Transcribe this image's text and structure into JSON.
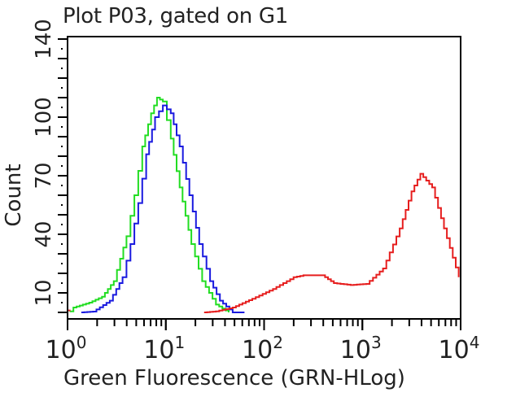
{
  "chart_data": {
    "type": "line",
    "title": "Plot P03, gated on G1",
    "xlabel": "Green Fluorescence (GRN-HLog)",
    "ylabel": "Count",
    "xscale": "log",
    "xlim": [
      1,
      10000
    ],
    "ylim": [
      0,
      141
    ],
    "x_ticks": [
      1,
      10,
      100,
      1000,
      10000
    ],
    "x_tick_labels": [
      {
        "base": "10",
        "exp": "0"
      },
      {
        "base": "10",
        "exp": "1"
      },
      {
        "base": "10",
        "exp": "2"
      },
      {
        "base": "10",
        "exp": "3"
      },
      {
        "base": "10",
        "exp": "4"
      }
    ],
    "y_ticks": [
      10,
      40,
      70,
      100,
      140
    ],
    "grid": false,
    "legend": null,
    "series": [
      {
        "name": "green",
        "color": "#22dd22",
        "points_log10x_count": [
          [
            0.02,
            0.5
          ],
          [
            0.06,
            2.5
          ],
          [
            0.22,
            5
          ],
          [
            0.35,
            8
          ],
          [
            0.47,
            16
          ],
          [
            0.6,
            39
          ],
          [
            0.68,
            60
          ],
          [
            0.76,
            85
          ],
          [
            0.85,
            102
          ],
          [
            0.91,
            110
          ],
          [
            0.97,
            108
          ],
          [
            1.05,
            89
          ],
          [
            1.14,
            64
          ],
          [
            1.26,
            35
          ],
          [
            1.37,
            16
          ],
          [
            1.51,
            4
          ],
          [
            1.64,
            0
          ]
        ]
      },
      {
        "name": "blue",
        "color": "#1a1adf",
        "points_log10x_count": [
          [
            0.14,
            0
          ],
          [
            0.26,
            0.4
          ],
          [
            0.43,
            6
          ],
          [
            0.56,
            18
          ],
          [
            0.64,
            35
          ],
          [
            0.72,
            56
          ],
          [
            0.8,
            81
          ],
          [
            0.89,
            100
          ],
          [
            0.97,
            106
          ],
          [
            1.05,
            102
          ],
          [
            1.14,
            85
          ],
          [
            1.24,
            60
          ],
          [
            1.34,
            35
          ],
          [
            1.45,
            16
          ],
          [
            1.55,
            6
          ],
          [
            1.68,
            0
          ],
          [
            1.8,
            0
          ]
        ]
      },
      {
        "name": "red",
        "color": "#e61e1e",
        "points_log10x_count": [
          [
            0.0,
            1
          ],
          [
            0.03,
            1
          ],
          [
            1.39,
            0
          ],
          [
            1.51,
            0.5
          ],
          [
            1.68,
            2.5
          ],
          [
            1.88,
            7
          ],
          [
            2.09,
            12
          ],
          [
            2.3,
            18
          ],
          [
            2.4,
            19
          ],
          [
            2.59,
            19
          ],
          [
            2.71,
            15
          ],
          [
            2.88,
            14
          ],
          [
            3.04,
            14.6
          ],
          [
            3.21,
            22.5
          ],
          [
            3.38,
            43
          ],
          [
            3.5,
            62
          ],
          [
            3.59,
            71
          ],
          [
            3.71,
            64
          ],
          [
            3.83,
            43
          ],
          [
            3.98,
            18
          ]
        ]
      }
    ]
  },
  "labels": {
    "title": "Plot P03, gated on G1",
    "xlabel": "Green Fluorescence (GRN-HLog)",
    "ylabel": "Count"
  }
}
